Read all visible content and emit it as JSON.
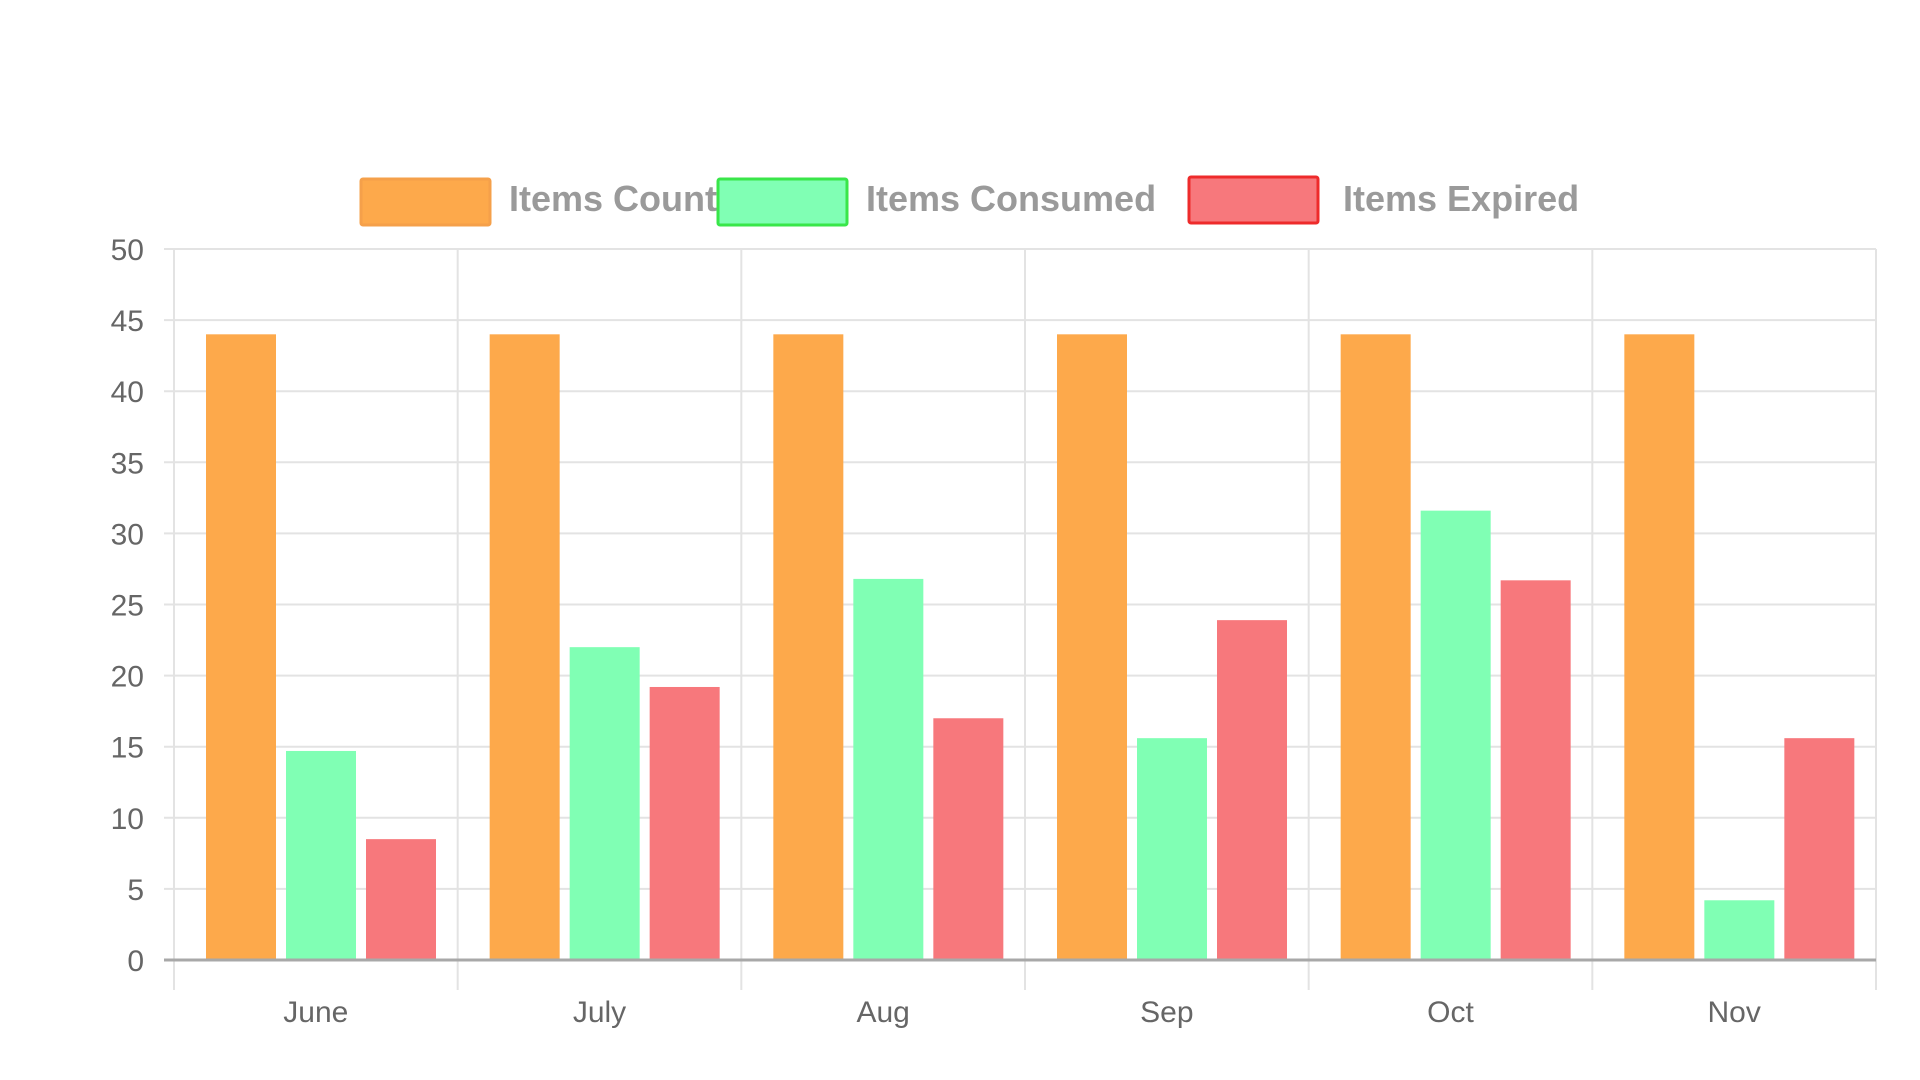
{
  "chart_data": {
    "type": "bar",
    "title": "",
    "xlabel": "",
    "ylabel": "",
    "categories": [
      "June",
      "July",
      "Aug",
      "Sep",
      "Oct",
      "Nov"
    ],
    "series": [
      {
        "name": "Items Count",
        "values": [
          44,
          44,
          44,
          44,
          44,
          44
        ],
        "color": "#FDA94B",
        "border": "#F5A04A"
      },
      {
        "name": "Items Consumed",
        "values": [
          14.7,
          22,
          26.8,
          15.6,
          31.6,
          4.2
        ],
        "color": "#80FFB4",
        "border": "#39E649"
      },
      {
        "name": "Items Expired",
        "values": [
          8.5,
          19.2,
          17,
          23.9,
          26.7,
          15.6
        ],
        "color": "#F7787C",
        "border": "#EE2B2B"
      }
    ],
    "ylim": [
      0,
      50
    ],
    "yticks": [
      0,
      5,
      10,
      15,
      20,
      25,
      30,
      35,
      40,
      45,
      50
    ],
    "grid": true,
    "legend_position": "top-center"
  }
}
